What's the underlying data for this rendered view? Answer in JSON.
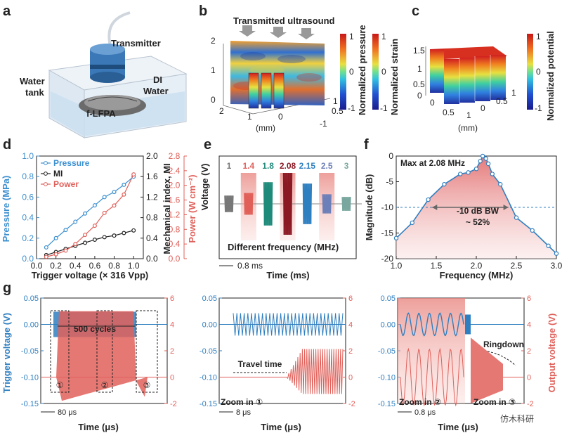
{
  "panels": {
    "a": {
      "label": "a",
      "texts": {
        "transmitter": "Transmitter",
        "water_tank": "Water\ntank",
        "di_water": "DI\nWater",
        "device": "f-LFPA"
      }
    },
    "b": {
      "label": "b",
      "title": "Transmitted ultrasound",
      "yticks": [
        "2",
        "1",
        "0"
      ],
      "xticks": [
        "2",
        "1",
        "0",
        "-1"
      ],
      "zticks": [
        "0.5",
        "1"
      ],
      "xunit": "(mm)",
      "cb1": {
        "label": "Normalized pressure",
        "ticks": [
          "1",
          "0",
          "-1"
        ]
      },
      "cb2": {
        "label": "Normalized strain",
        "ticks": [
          "1",
          "0",
          "-1"
        ]
      }
    },
    "c": {
      "label": "c",
      "yticks": [
        "1.5",
        "1",
        "0.5",
        "0"
      ],
      "xticks": [
        "0",
        "0.5",
        "1"
      ],
      "zticks": [
        "0",
        "0.5",
        "1"
      ],
      "xunit": "(mm)",
      "cb": {
        "label": "Normalized potential",
        "ticks": [
          "1",
          "0",
          "-1"
        ]
      }
    }
  },
  "chart_data": [
    {
      "panel": "d",
      "type": "line",
      "xlabel": "Trigger voltage (× 316 Vpp)",
      "ylabel_left": "Pressure (MPa)",
      "ylabel_right1": "Mechanical index, MI",
      "ylabel_right2": "Power (W cm⁻²)",
      "xlim": [
        0.0,
        1.1
      ],
      "xticks": [
        "0.0",
        "0.2",
        "0.4",
        "0.6",
        "0.8",
        "1.0"
      ],
      "ylim_left": [
        0,
        1.0
      ],
      "yticks_left": [
        "0.0",
        "0.2",
        "0.4",
        "0.6",
        "0.8",
        "1.0"
      ],
      "ylim_right1": [
        0,
        2.0
      ],
      "yticks_right1": [
        "0.0",
        "0.4",
        "0.8",
        "1.2",
        "1.6",
        "2.0"
      ],
      "ylim_right2": [
        0,
        2.8
      ],
      "yticks_right2": [
        "0.0",
        "0.4",
        "0.8",
        "1.2",
        "1.6",
        "2.0",
        "2.4",
        "2.8"
      ],
      "x": [
        0.1,
        0.2,
        0.3,
        0.4,
        0.5,
        0.6,
        0.7,
        0.8,
        0.9,
        1.0
      ],
      "series": [
        {
          "name": "Pressure",
          "axis": "left",
          "color": "#3b8fd0",
          "values": [
            0.11,
            0.2,
            0.28,
            0.36,
            0.44,
            0.52,
            0.6,
            0.65,
            0.72,
            0.8
          ]
        },
        {
          "name": "MI",
          "axis": "right1",
          "color": "#222222",
          "values": [
            0.07,
            0.13,
            0.19,
            0.25,
            0.31,
            0.37,
            0.42,
            0.45,
            0.5,
            0.55
          ]
        },
        {
          "name": "Power",
          "axis": "right2",
          "color": "#e0605a",
          "values": [
            0.05,
            0.12,
            0.22,
            0.4,
            0.65,
            0.9,
            1.25,
            1.45,
            1.75,
            2.3
          ]
        }
      ],
      "legend": "top-left"
    },
    {
      "panel": "e",
      "type": "waveform",
      "xlabel": "Time (ms)",
      "ylabel": "Voltage (V)",
      "annotation": "Different frequency (MHz)",
      "scale_label": "0.8 ms",
      "bursts": [
        {
          "freq": "1",
          "amplitude": 0.15,
          "color": "#777777",
          "highlight": false
        },
        {
          "freq": "1.4",
          "amplitude": 0.25,
          "color": "#e0605a",
          "highlight": true
        },
        {
          "freq": "1.8",
          "amplitude": 0.65,
          "color": "#1f8a7a",
          "highlight": false
        },
        {
          "freq": "2.08",
          "amplitude": 1.0,
          "color": "#8b1a24",
          "highlight": true
        },
        {
          "freq": "2.15",
          "amplitude": 0.6,
          "color": "#2f7fc0",
          "highlight": false
        },
        {
          "freq": "2.5",
          "amplitude": 0.2,
          "color": "#6e7fb8",
          "highlight": true
        },
        {
          "freq": "3",
          "amplitude": 0.1,
          "color": "#7aa7a0",
          "highlight": false
        }
      ]
    },
    {
      "panel": "f",
      "type": "line",
      "xlabel": "Frequency (MHz)",
      "ylabel": "Magnitude (dB)",
      "xlim": [
        1.0,
        3.0
      ],
      "xticks": [
        "1.0",
        "1.5",
        "2.0",
        "2.5",
        "3.0"
      ],
      "ylim": [
        -20,
        0
      ],
      "yticks": [
        "0",
        "-5",
        "-10",
        "-15",
        "-20"
      ],
      "x": [
        1.0,
        1.2,
        1.4,
        1.6,
        1.8,
        1.9,
        2.0,
        2.05,
        2.08,
        2.12,
        2.15,
        2.2,
        2.3,
        2.5,
        2.7,
        2.9,
        3.0
      ],
      "y": [
        -16,
        -13,
        -8.5,
        -5.5,
        -3.5,
        -3.2,
        -2.5,
        -1,
        0,
        -0.5,
        -1.5,
        -3.5,
        -5.5,
        -12,
        -14.5,
        -17.5,
        -19
      ],
      "reference_line": -10,
      "annotations": [
        "Max at 2.08 MHz",
        "-10 dB BW",
        "~ 52%"
      ],
      "color": "#2f7fc0"
    },
    {
      "panel": "g",
      "type": "waveform",
      "ylabel_left": "Trigger voltage (V)",
      "ylabel_right": "Output voltage (V)",
      "xlabel": "Time (μs)",
      "ylim_left": [
        -0.15,
        0.05
      ],
      "yticks_left": [
        "0.05",
        "0.00",
        "-0.05",
        "-0.10",
        "-0.15"
      ],
      "ylim_right": [
        -2,
        6
      ],
      "yticks_right": [
        "6",
        "4",
        "2",
        "0",
        "-2"
      ],
      "subplots": [
        {
          "scale": "80 μs",
          "notes": [
            "500 cycles",
            "①",
            "②",
            "③"
          ]
        },
        {
          "scale": "8 μs",
          "notes": [
            "Travel time",
            "Zoom in ①"
          ]
        },
        {
          "scale": "0.8 μs",
          "notes": [
            "Ringdown",
            "Zoom in ②",
            "Zoom in ③"
          ]
        }
      ]
    }
  ],
  "watermark": "仿木科研"
}
